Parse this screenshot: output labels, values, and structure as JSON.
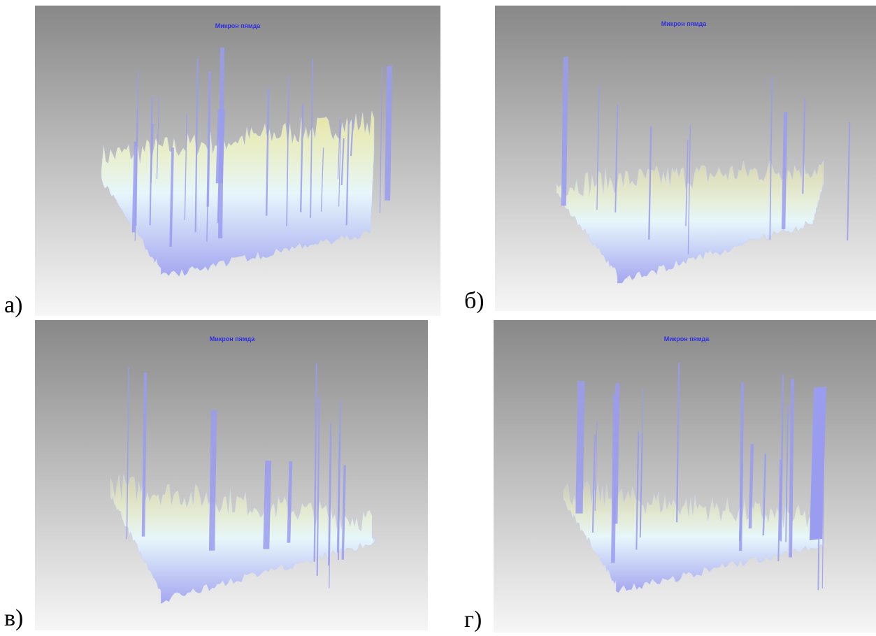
{
  "panels": [
    {
      "label": "а)",
      "title": "Микрон пямда"
    },
    {
      "label": "б)",
      "title": "Микрон пямда"
    },
    {
      "label": "в)",
      "title": "Микрон пямда"
    },
    {
      "label": "г)",
      "title": "Микрон пямда"
    }
  ]
}
